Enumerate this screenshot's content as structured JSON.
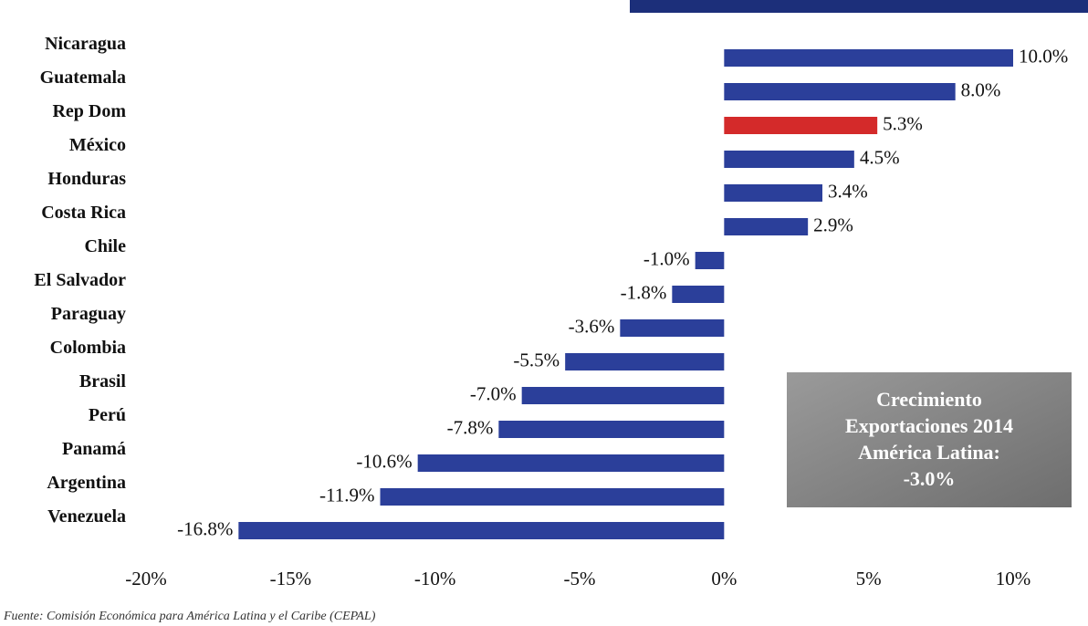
{
  "chart_data": {
    "type": "bar",
    "orientation": "horizontal",
    "categories": [
      "Nicaragua",
      "Guatemala",
      "Rep Dom",
      "México",
      "Honduras",
      "Costa Rica",
      "Chile",
      "El Salvador",
      "Paraguay",
      "Colombia",
      "Brasil",
      "Perú",
      "Panamá",
      "Argentina",
      "Venezuela"
    ],
    "values": [
      10.0,
      8.0,
      5.3,
      4.5,
      3.4,
      2.9,
      -1.0,
      -1.8,
      -3.6,
      -5.5,
      -7.0,
      -7.8,
      -10.6,
      -11.9,
      -16.8
    ],
    "value_labels": [
      "10.0%",
      "8.0%",
      "5.3%",
      "4.5%",
      "3.4%",
      "2.9%",
      "-1.0%",
      "-1.8%",
      "-3.6%",
      "-5.5%",
      "-7.0%",
      "-7.8%",
      "-10.6%",
      "-11.9%",
      "-16.8%"
    ],
    "colors": [
      "#2b3f9a",
      "#2b3f9a",
      "#d42a2a",
      "#2b3f9a",
      "#2b3f9a",
      "#2b3f9a",
      "#2b3f9a",
      "#2b3f9a",
      "#2b3f9a",
      "#2b3f9a",
      "#2b3f9a",
      "#2b3f9a",
      "#2b3f9a",
      "#2b3f9a",
      "#2b3f9a"
    ],
    "xlim": [
      -20,
      10
    ],
    "xticks": [
      {
        "value": -20,
        "label": "-20%"
      },
      {
        "value": -15,
        "label": "-15%"
      },
      {
        "value": -10,
        "label": "-10%"
      },
      {
        "value": -5,
        "label": "-5%"
      },
      {
        "value": 0,
        "label": "0%"
      },
      {
        "value": 5,
        "label": "5%"
      },
      {
        "value": 10,
        "label": "10%"
      }
    ],
    "annotation": [
      "Crecimiento",
      "Exportaciones 2014",
      "América Latina:",
      "-3.0%"
    ],
    "source": "Fuente: Comisión Económica para América Latina y el Caribe (CEPAL)"
  }
}
